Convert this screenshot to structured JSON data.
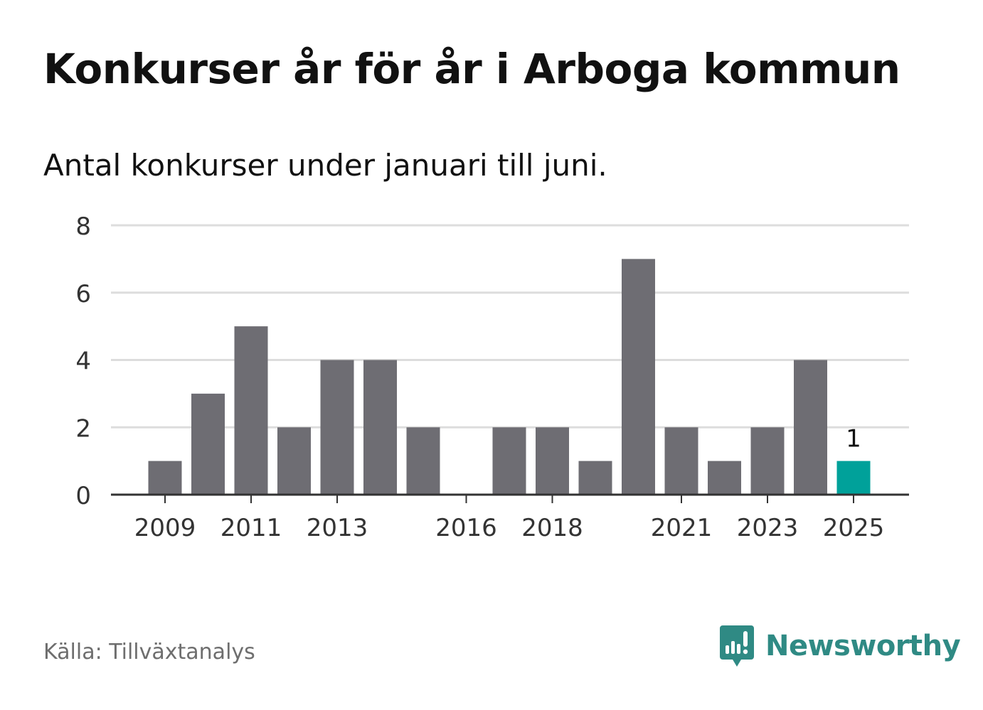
{
  "header": {
    "title": "Konkurser år för år i Arboga kommun",
    "subtitle": "Antal konkurser under januari till juni."
  },
  "footer": {
    "source": "Källa: Tillväxtanalys",
    "brand": "Newsworthy",
    "brand_icon": "newsworthy-logo-icon",
    "brand_color": "#2f8a84"
  },
  "chart_data": {
    "type": "bar",
    "categories": [
      "2009",
      "2010",
      "2011",
      "2012",
      "2013",
      "2014",
      "2015",
      "2016",
      "2017",
      "2018",
      "2019",
      "2020",
      "2021",
      "2022",
      "2023",
      "2024",
      "2025"
    ],
    "values": [
      1,
      3,
      5,
      2,
      4,
      4,
      2,
      0,
      2,
      2,
      1,
      7,
      2,
      1,
      2,
      4,
      1
    ],
    "x_tick_labels": [
      "2009",
      "2011",
      "2013",
      "2016",
      "2018",
      "2021",
      "2023",
      "2025"
    ],
    "y_ticks": [
      0,
      2,
      4,
      6,
      8
    ],
    "ylim": [
      0,
      8
    ],
    "highlight": {
      "category": "2025",
      "label": "1"
    },
    "colors": {
      "bar": "#6e6d73",
      "highlight": "#00a19a",
      "grid": "#dddddd",
      "axis": "#333333"
    },
    "grid": true,
    "title": "",
    "xlabel": "",
    "ylabel": ""
  }
}
